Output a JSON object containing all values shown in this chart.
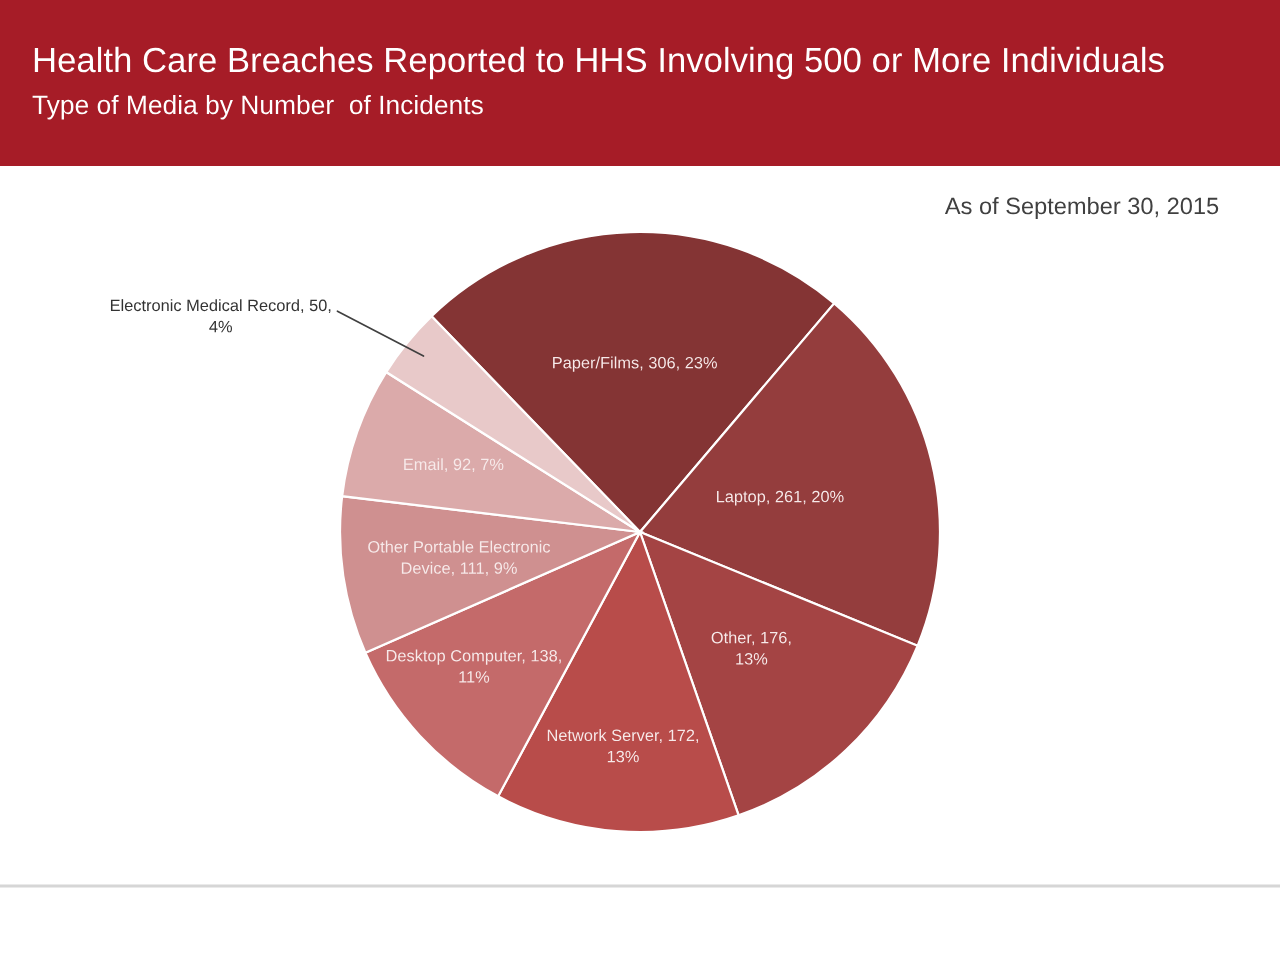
{
  "chart_data": {
    "type": "pie",
    "title": "Health Care Breaches Reported to HHS Involving 500 or More Individuals",
    "subtitle": "Type of Media by Number  of Incidents",
    "annotations": [
      "As of September 30, 2015"
    ],
    "categories": [
      "Paper/Films",
      "Laptop",
      "Other",
      "Network Server",
      "Desktop Computer",
      "Other Portable Electronic Device",
      "Email",
      "Electronic Medical Record"
    ],
    "values": [
      306,
      261,
      176,
      172,
      138,
      111,
      92,
      50
    ],
    "colors": [
      "#843434",
      "#943d3d",
      "#a44444",
      "#b84c4a",
      "#c46a6a",
      "#cf9090",
      "#dbaaaa",
      "#e8c9c9"
    ],
    "value_labels": [
      "306, 23%",
      "261, 20%",
      "176, 13%",
      "172, 13%",
      "138, 11%",
      "111, 9%",
      "92, 7%",
      "50, 4%"
    ]
  }
}
